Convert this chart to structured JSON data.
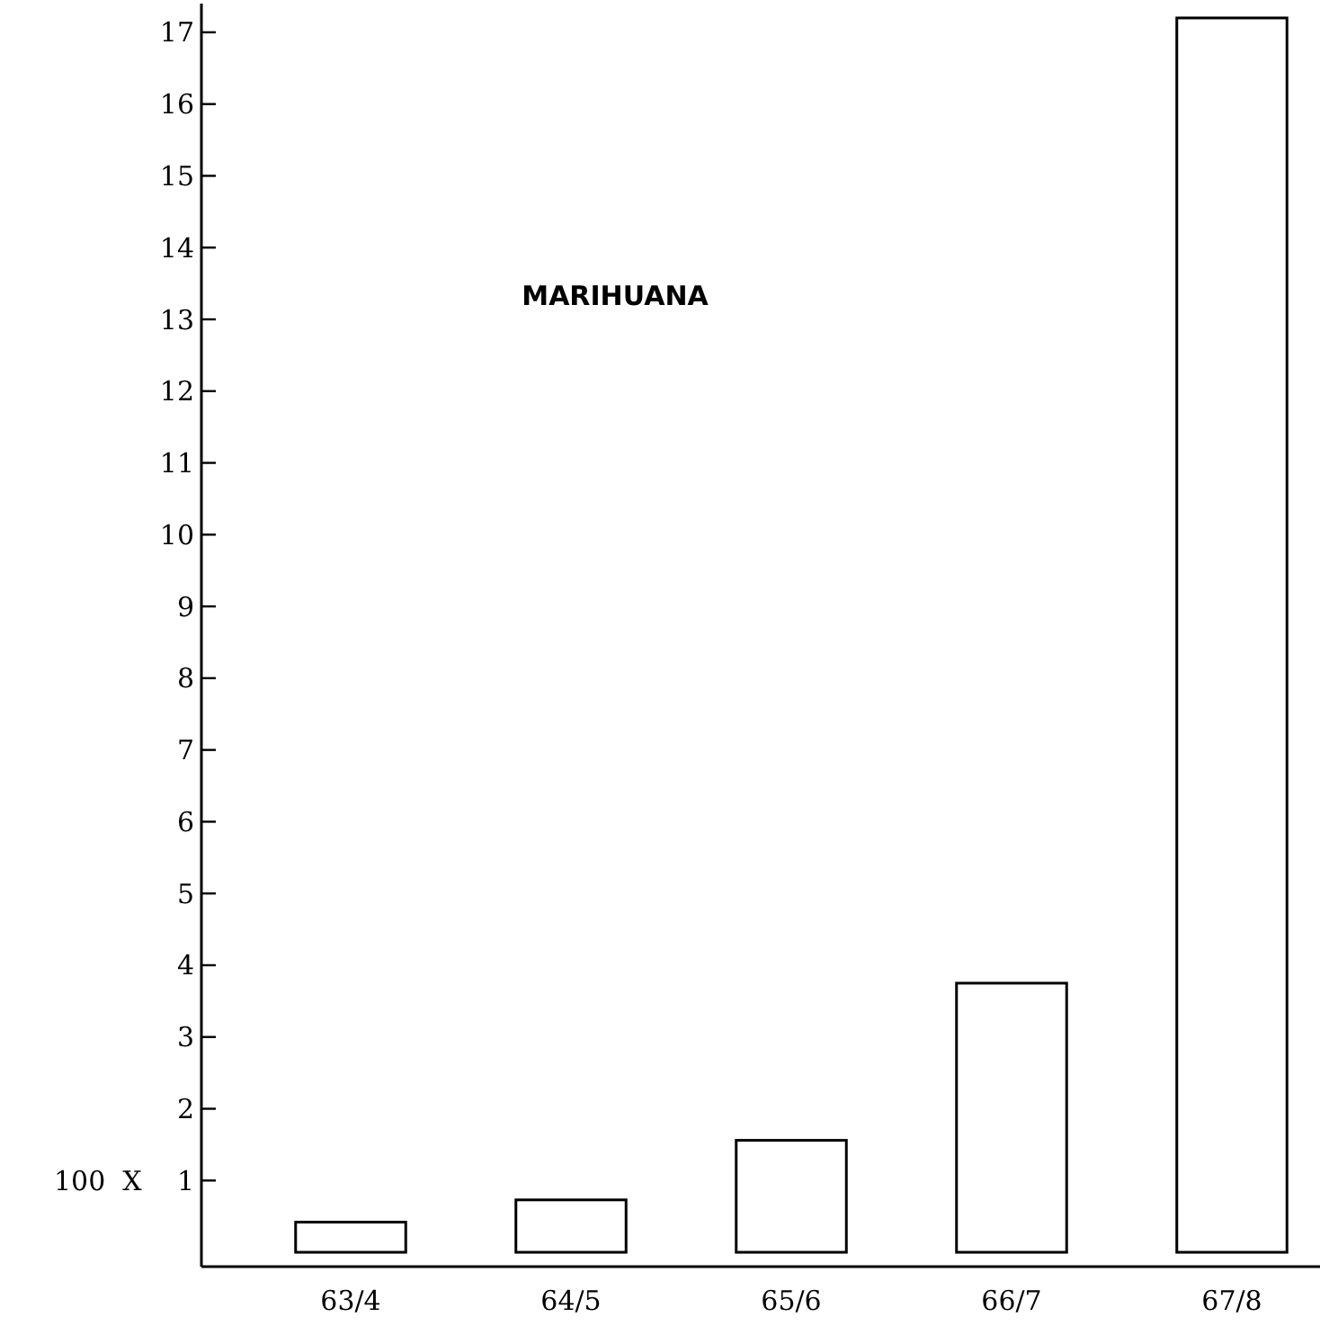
{
  "chart_data": {
    "type": "bar",
    "title": "MARIHUANA",
    "ylabel": "100  X",
    "categories": [
      "63/4",
      "64/5",
      "65/6",
      "66/7",
      "67/8"
    ],
    "values": [
      0.42,
      0.73,
      1.56,
      3.75,
      17.2
    ],
    "color": "#ffffff",
    "ylim": [
      -0.2,
      17.4
    ],
    "yticks": [
      1,
      2,
      3,
      4,
      5,
      6,
      7,
      8,
      9,
      10,
      11,
      12,
      13,
      14,
      15,
      16,
      17
    ],
    "grid": false
  }
}
